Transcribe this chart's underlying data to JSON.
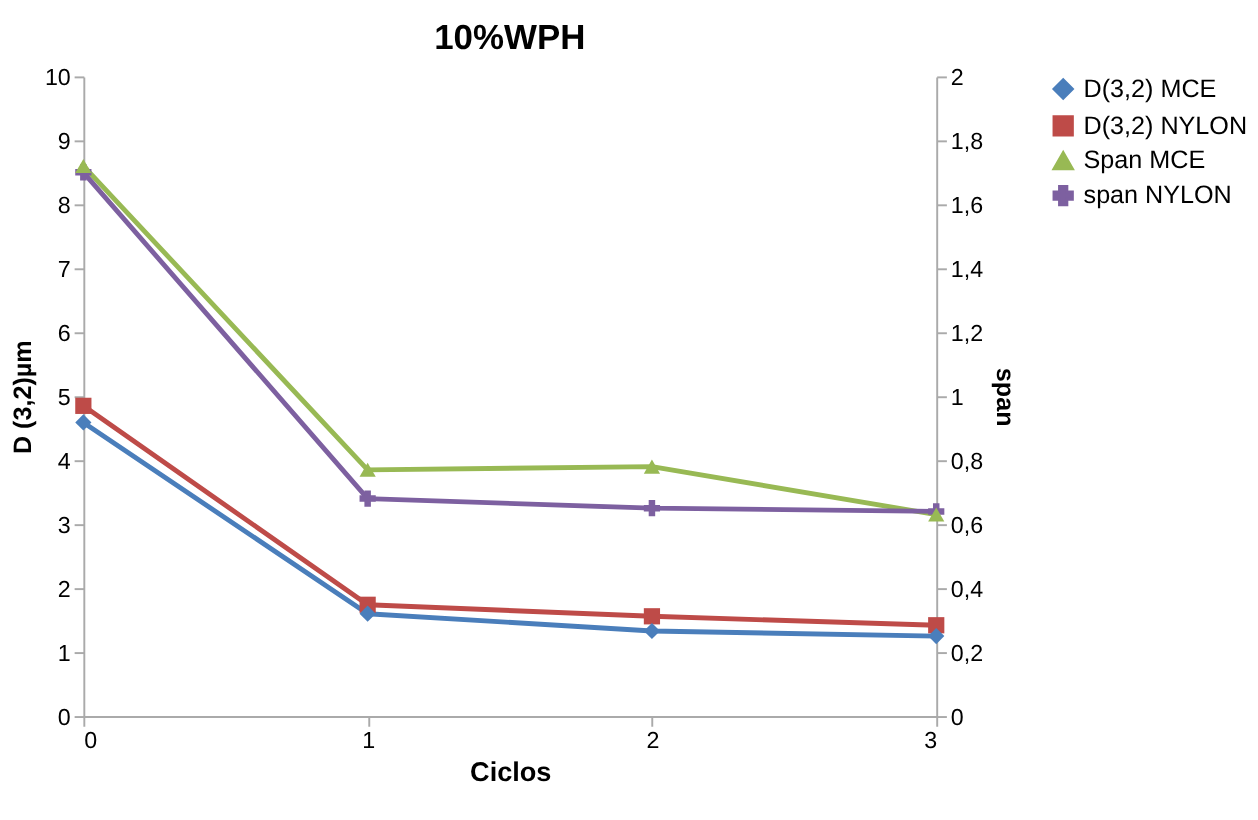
{
  "chart_data": {
    "type": "line",
    "title": "10%WPH",
    "xlabel": "Ciclos",
    "ylabel": "D (3,2)µm",
    "y2label": "span",
    "x": [
      0,
      1,
      2,
      3
    ],
    "xlim": [
      0,
      3
    ],
    "xticks": [
      0,
      1,
      2,
      3
    ],
    "ylim": [
      0,
      10
    ],
    "yticks": [
      0,
      1,
      2,
      3,
      4,
      5,
      6,
      7,
      8,
      9,
      10
    ],
    "y2lim": [
      0,
      2
    ],
    "y2ticks": [
      0,
      {
        "value": 0.2,
        "label": "0,2"
      },
      {
        "value": 0.4,
        "label": "0,4"
      },
      {
        "value": 0.6,
        "label": "0,6"
      },
      {
        "value": 0.8,
        "label": "0,8"
      },
      1,
      {
        "value": 1.2,
        "label": "1,2"
      },
      {
        "value": 1.4,
        "label": "1,4"
      },
      {
        "value": 1.6,
        "label": "1,6"
      },
      {
        "value": 1.8,
        "label": "1,8"
      },
      2
    ],
    "grid": false,
    "legend": "right",
    "line_style": "solid",
    "series": [
      {
        "name": "D(3,2) MCE",
        "color": "#4a7ebb",
        "marker": "diamond",
        "values": [
          4.59,
          1.6,
          1.33,
          1.25
        ]
      },
      {
        "name": "D(3,2) NYLON",
        "color": "#be4b48",
        "marker": "square",
        "values": [
          4.85,
          1.74,
          1.56,
          1.42
        ]
      },
      {
        "name": "Span MCE",
        "color": "#98b954",
        "marker": "triangle",
        "axis": "y2",
        "values": [
          1.72,
          0.77,
          0.78,
          0.63
        ]
      },
      {
        "name": "span NYLON",
        "color": "#7d60a0",
        "marker": "cross",
        "axis": "y2",
        "values": [
          1.7,
          0.68,
          0.65,
          0.64
        ]
      }
    ]
  }
}
